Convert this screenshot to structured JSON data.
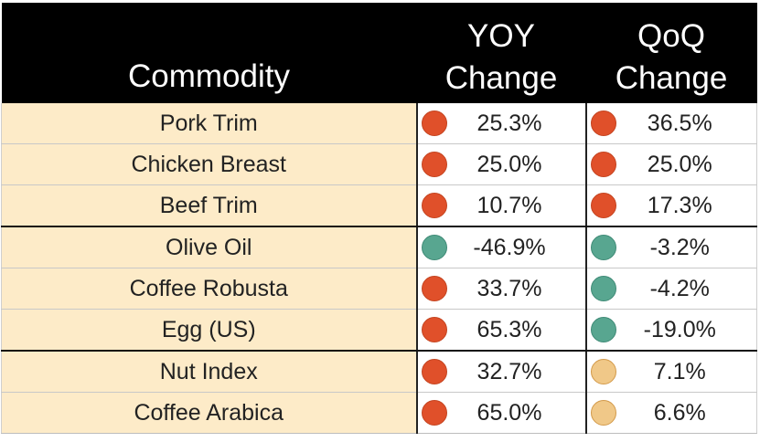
{
  "table": {
    "headers": {
      "commodity": "Commodity",
      "yoy_line1": "YOY",
      "yoy_line2": "Change",
      "qoq_line1": "QoQ",
      "qoq_line2": "Change"
    },
    "rows": [
      {
        "commodity": "Pork Trim",
        "yoy": "25.3%",
        "yoy_status": "red",
        "qoq": "36.5%",
        "qoq_status": "red"
      },
      {
        "commodity": "Chicken Breast",
        "yoy": "25.0%",
        "yoy_status": "red",
        "qoq": "25.0%",
        "qoq_status": "red"
      },
      {
        "commodity": "Beef Trim",
        "yoy": "10.7%",
        "yoy_status": "red",
        "qoq": "17.3%",
        "qoq_status": "red"
      },
      {
        "commodity": "Olive Oil",
        "yoy": "-46.9%",
        "yoy_status": "green",
        "qoq": "-3.2%",
        "qoq_status": "green"
      },
      {
        "commodity": "Coffee Robusta",
        "yoy": "33.7%",
        "yoy_status": "red",
        "qoq": "-4.2%",
        "qoq_status": "green"
      },
      {
        "commodity": "Egg (US)",
        "yoy": "65.3%",
        "yoy_status": "red",
        "qoq": "-19.0%",
        "qoq_status": "green"
      },
      {
        "commodity": "Nut Index",
        "yoy": "32.7%",
        "yoy_status": "red",
        "qoq": "7.1%",
        "qoq_status": "tan"
      },
      {
        "commodity": "Coffee Arabica",
        "yoy": "65.0%",
        "yoy_status": "red",
        "qoq": "6.6%",
        "qoq_status": "tan"
      }
    ]
  },
  "colors": {
    "header_bg": "#000000",
    "header_text": "#ffffff",
    "name_cell_bg": "#fdebc8",
    "status_red": "#e0502a",
    "status_green": "#58a690",
    "status_tan": "#f0c888"
  }
}
